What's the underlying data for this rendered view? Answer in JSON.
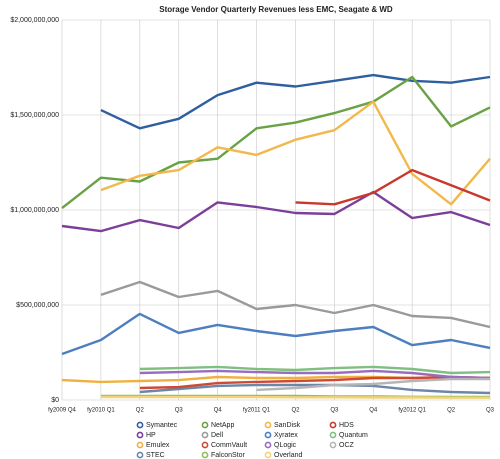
{
  "chart_data": {
    "type": "line",
    "title": "Storage Vendor Quarterly Revenues less EMC, Seagate & WD",
    "categories": [
      "fy2009 Q4",
      "fy2010 Q1",
      "Q2",
      "Q3",
      "Q4",
      "fy2011 Q1",
      "Q2",
      "Q3",
      "Q4",
      "fy2012 Q1",
      "Q2",
      "Q3"
    ],
    "ylim": [
      0,
      2000000000
    ],
    "yticks": [
      {
        "value": 0,
        "label": "$0"
      },
      {
        "value": 500000000,
        "label": "$500,000,000"
      },
      {
        "value": 1000000000,
        "label": "$1,000,000,000"
      },
      {
        "value": 1500000000,
        "label": "$1,500,000,000"
      },
      {
        "value": 2000000000,
        "label": "$2,000,000,000"
      }
    ],
    "grid": true,
    "legend": "bottom",
    "series": [
      {
        "name": "Symantec",
        "color": "#2f5f9e",
        "values": [
          null,
          1526000000,
          1430000000,
          1480000000,
          1605000000,
          1670000000,
          1650000000,
          1680000000,
          1710000000,
          1680000000,
          1670000000,
          1700000000
        ]
      },
      {
        "name": "HP",
        "color": "#7b3f9a",
        "values": [
          916000000,
          889000000,
          947000000,
          905000000,
          1040000000,
          1016000000,
          984000000,
          979000000,
          1095000000,
          958000000,
          989000000,
          921000000
        ]
      },
      {
        "name": "Emulex",
        "color": "#f0b040",
        "values": [
          105000000,
          95000000,
          100000000,
          105000000,
          121000000,
          116000000,
          116000000,
          121000000,
          121000000,
          116000000,
          116000000,
          116000000
        ]
      },
      {
        "name": "STEC",
        "color": "#6c86a8",
        "values": [
          null,
          null,
          42000000,
          58000000,
          74000000,
          79000000,
          79000000,
          79000000,
          74000000,
          53000000,
          42000000,
          37000000
        ]
      },
      {
        "name": "NetApp",
        "color": "#69a245",
        "values": [
          1010000000,
          1170000000,
          1150000000,
          1250000000,
          1270000000,
          1430000000,
          1460000000,
          1510000000,
          1570000000,
          1700000000,
          1440000000,
          1540000000
        ]
      },
      {
        "name": "Dell",
        "color": "#9a9a9a",
        "values": [
          null,
          553000000,
          621000000,
          542000000,
          574000000,
          479000000,
          500000000,
          458000000,
          500000000,
          442000000,
          432000000,
          384000000
        ]
      },
      {
        "name": "CommVault",
        "color": "#cf4a35",
        "values": [
          null,
          null,
          63000000,
          68000000,
          89000000,
          95000000,
          100000000,
          105000000,
          116000000,
          116000000,
          121000000,
          116000000
        ]
      },
      {
        "name": "FalconStor",
        "color": "#8fbf5a",
        "values": [
          null,
          21000000,
          21000000,
          21000000,
          21000000,
          21000000,
          21000000,
          19000000,
          19000000,
          17000000,
          16000000,
          16000000
        ]
      },
      {
        "name": "SanDisk",
        "color": "#f2b84b",
        "values": [
          null,
          1105000000,
          1180000000,
          1210000000,
          1330000000,
          1290000000,
          1370000000,
          1420000000,
          1570000000,
          1190000000,
          1030000000,
          1270000000
        ]
      },
      {
        "name": "Xyratex",
        "color": "#4d7fbf",
        "values": [
          242000000,
          316000000,
          453000000,
          353000000,
          395000000,
          363000000,
          337000000,
          363000000,
          384000000,
          289000000,
          316000000,
          274000000
        ]
      },
      {
        "name": "QLogic",
        "color": "#9a6cc0",
        "values": [
          null,
          null,
          142000000,
          147000000,
          153000000,
          147000000,
          142000000,
          142000000,
          153000000,
          142000000,
          121000000,
          116000000
        ]
      },
      {
        "name": "Overland",
        "color": "#f3d27a",
        "values": [
          null,
          16000000,
          16000000,
          15000000,
          15000000,
          15000000,
          14000000,
          14000000,
          13000000,
          13000000,
          12000000,
          12000000
        ]
      },
      {
        "name": "HDS",
        "color": "#c8392b",
        "values": [
          null,
          null,
          null,
          null,
          null,
          null,
          1040000000,
          1030000000,
          1090000000,
          1210000000,
          1130000000,
          1050000000
        ]
      },
      {
        "name": "Quantum",
        "color": "#7fbf7f",
        "values": [
          null,
          null,
          163000000,
          168000000,
          174000000,
          163000000,
          158000000,
          168000000,
          174000000,
          163000000,
          142000000,
          147000000
        ]
      },
      {
        "name": "OCZ",
        "color": "#b5b5b5",
        "values": [
          null,
          null,
          null,
          null,
          null,
          53000000,
          63000000,
          79000000,
          84000000,
          100000000,
          110000000,
          110000000
        ]
      }
    ]
  }
}
